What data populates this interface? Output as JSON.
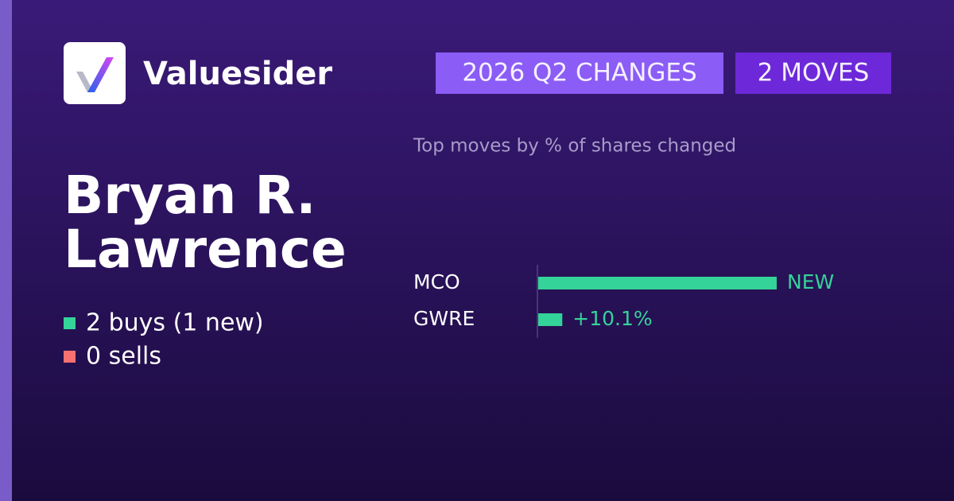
{
  "brand": "Valuesider",
  "badges": [
    "2026 Q2 CHANGES",
    "2 MOVES"
  ],
  "name_lines": [
    "Bryan R.",
    "Lawrence"
  ],
  "stats": [
    {
      "text": "2 buys (1 new)",
      "color": "#34d399"
    },
    {
      "text": "0 sells",
      "color": "#f87171"
    }
  ],
  "chart_data": {
    "type": "bar",
    "orientation": "horizontal",
    "title": "Top moves by % of shares changed",
    "categories": [
      "MCO",
      "GWRE"
    ],
    "values": [
      100,
      10.1
    ],
    "value_labels": [
      "NEW",
      "+10.1%"
    ],
    "color": "#34d399",
    "xlim": [
      0,
      100
    ]
  }
}
